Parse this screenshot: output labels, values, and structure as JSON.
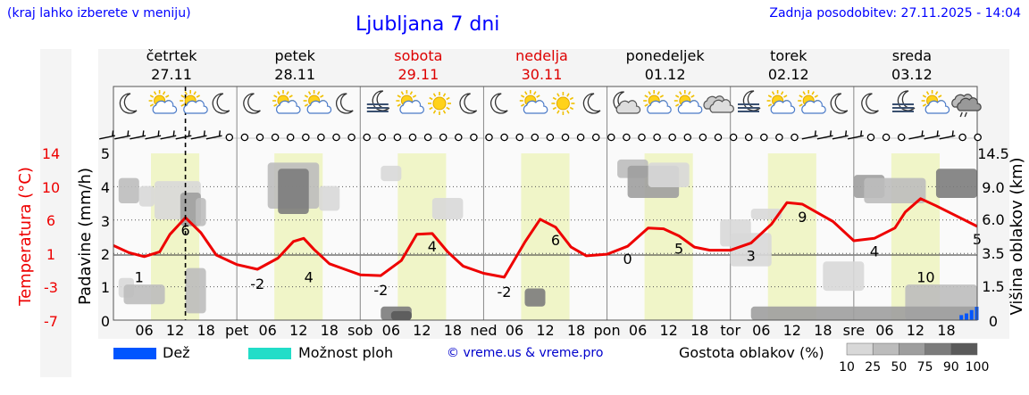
{
  "header": {
    "subtitle_left": "(kraj lahko izberete v meniju)",
    "title": "Ljubljana 7 dni",
    "updated": "Zadnja posodobitev: 27.11.2025 - 14:04"
  },
  "days": [
    {
      "name": "četrtek",
      "date": "27.11",
      "weekend": false
    },
    {
      "name": "petek",
      "date": "28.11",
      "weekend": false
    },
    {
      "name": "sobota",
      "date": "29.11",
      "weekend": true
    },
    {
      "name": "nedelja",
      "date": "30.11",
      "weekend": true
    },
    {
      "name": "ponedeljek",
      "date": "01.12",
      "weekend": false
    },
    {
      "name": "torek",
      "date": "02.12",
      "weekend": false
    },
    {
      "name": "sreda",
      "date": "03.12",
      "weekend": false
    }
  ],
  "x_labels": [
    "06",
    "12",
    "18",
    "pet",
    "06",
    "12",
    "18",
    "sob",
    "06",
    "12",
    "18",
    "ned",
    "06",
    "12",
    "18",
    "pon",
    "06",
    "12",
    "18",
    "tor",
    "06",
    "12",
    "18",
    "sre",
    "06",
    "12",
    "18"
  ],
  "weather_icons": [
    "moon",
    "sun-cloud",
    "sun-cloud",
    "moon",
    "moon",
    "sun-cloud",
    "sun-cloud",
    "moon",
    "fog",
    "sun-cloud",
    "sun",
    "moon",
    "moon",
    "sun-cloud",
    "sun",
    "moon",
    "moon-cloud",
    "sun-cloud",
    "sun-cloud",
    "cloud",
    "fog",
    "sun-cloud",
    "sun-cloud",
    "moon",
    "moon",
    "fog",
    "sun-cloud",
    "rain-cloud"
  ],
  "wind_icons": [
    "barb",
    "barb",
    "barb",
    "barb",
    "barb",
    "barb",
    "barb",
    "barb",
    "calm",
    "calm",
    "calm",
    "calm",
    "calm",
    "calm",
    "calm",
    "calm",
    "calm",
    "calm",
    "calm",
    "calm",
    "calm",
    "calm",
    "calm",
    "calm",
    "calm",
    "calm",
    "calm",
    "calm",
    "calm",
    "calm",
    "calm",
    "calm",
    "calm",
    "calm",
    "calm",
    "calm",
    "calm",
    "calm",
    "calm",
    "calm",
    "calm",
    "calm",
    "calm",
    "calm",
    "calm",
    "calm",
    "barb",
    "barb",
    "barb",
    "barb",
    "calm",
    "calm",
    "calm",
    "barb",
    "barb",
    "barb",
    "calm",
    "calm"
  ],
  "legend": {
    "rain_label": "Dež",
    "rain_color": "#0055ff",
    "showers_label": "Možnost ploh",
    "showers_color": "#22ddc8",
    "credit": "© vreme.us & vreme.pro",
    "cloud_label": "Gostota oblakov (%)",
    "cloud_levels": [
      "10",
      "25",
      "50",
      "75",
      "90",
      "100"
    ],
    "cloud_colors": [
      "#d8d8d8",
      "#bcbcbc",
      "#9e9e9e",
      "#7c7c7c",
      "#5a5a5a"
    ]
  },
  "colors": {
    "temperature": "#ee0000",
    "weekend": "#dd0000",
    "daylight": "#f0f5c8"
  },
  "chart_data": {
    "type": "line",
    "title": "Ljubljana 7 dni",
    "x_unit": "hours from 27.11 00:00",
    "now_marker_hours": 14,
    "ylabel_left_outer": "Temperatura (°C)",
    "ylabel_left_inner": "Padavine (mm/h)",
    "ylabel_right": "Višina oblakov (km)",
    "temperature_ticks": [
      "14",
      "10",
      "6",
      "1",
      "-3",
      "-7"
    ],
    "precip_ticks": [
      "5",
      "4",
      "3",
      "2",
      "1",
      "0"
    ],
    "cloud_height_ticks": [
      "14.5",
      "9.0",
      "6.0",
      "3.5",
      "1.5",
      "0"
    ],
    "daylight_hours": [
      [
        7.3,
        16.7
      ],
      [
        31.3,
        40.7
      ],
      [
        55.3,
        64.7
      ],
      [
        79.3,
        88.7
      ],
      [
        103.3,
        112.7
      ],
      [
        127.3,
        136.7
      ],
      [
        151.3,
        160.7
      ]
    ],
    "series": [
      {
        "kind": "temperature",
        "x": [
          0,
          3,
          6,
          9,
          11,
          14,
          17,
          20,
          24,
          28,
          32,
          35,
          37,
          39,
          42,
          45,
          48,
          52,
          56,
          59,
          62,
          65,
          68,
          72,
          76,
          80,
          83,
          86,
          89,
          92,
          96,
          100,
          104,
          107,
          110,
          113,
          116,
          120,
          124,
          128,
          131,
          134,
          137,
          140,
          144,
          148,
          152,
          154,
          157,
          160,
          164,
          168
        ],
        "values": [
          2.4,
          1.5,
          1.0,
          1.6,
          3.8,
          5.9,
          4.0,
          1.2,
          0,
          -0.6,
          0.8,
          2.9,
          3.3,
          1.9,
          0.1,
          -0.6,
          -1.3,
          -1.4,
          0.5,
          3.8,
          3.9,
          1.6,
          -0.2,
          -1.1,
          -1.6,
          2.8,
          5.7,
          4.7,
          2.2,
          1.1,
          1.3,
          2.3,
          4.6,
          4.5,
          3.6,
          2.2,
          1.8,
          1.8,
          2.7,
          5.1,
          7.8,
          7.6,
          6.5,
          5.4,
          3.0,
          3.3,
          4.6,
          6.6,
          8.3,
          7.4,
          6.1,
          4.8
        ]
      }
    ],
    "labels": [
      {
        "x": 5,
        "text": "1"
      },
      {
        "x": 14,
        "text": "6"
      },
      {
        "x": 28,
        "text": "-2"
      },
      {
        "x": 38,
        "text": "4"
      },
      {
        "x": 52,
        "text": "-2"
      },
      {
        "x": 62,
        "text": "4"
      },
      {
        "x": 76,
        "text": "-2"
      },
      {
        "x": 86,
        "text": "6"
      },
      {
        "x": 100,
        "text": "0"
      },
      {
        "x": 110,
        "text": "5"
      },
      {
        "x": 124,
        "text": "3"
      },
      {
        "x": 134,
        "text": "9"
      },
      {
        "x": 148,
        "text": "4"
      },
      {
        "x": 158,
        "text": "10"
      },
      {
        "x": 168,
        "text": "5"
      }
    ],
    "cloud_patches": [
      {
        "x": [
          1,
          5
        ],
        "km": [
          7.5,
          10.5
        ],
        "d": 2
      },
      {
        "x": [
          5,
          8
        ],
        "km": [
          7.2,
          9.2
        ],
        "d": 1
      },
      {
        "x": [
          8,
          17
        ],
        "km": [
          6,
          10
        ],
        "d": 1
      },
      {
        "x": [
          13,
          17
        ],
        "km": [
          5.5,
          8.5
        ],
        "d": 3
      },
      {
        "x": [
          16,
          18
        ],
        "km": [
          5.5,
          8
        ],
        "d": 2
      },
      {
        "x": [
          1,
          4
        ],
        "km": [
          1,
          2
        ],
        "d": 1
      },
      {
        "x": [
          2,
          10
        ],
        "km": [
          0.7,
          1.6
        ],
        "d": 2
      },
      {
        "x": [
          14,
          18
        ],
        "km": [
          0.3,
          2.6
        ],
        "d": 2
      },
      {
        "x": [
          30,
          40
        ],
        "km": [
          7,
          13
        ],
        "d": 2
      },
      {
        "x": [
          32,
          38
        ],
        "km": [
          6.5,
          12
        ],
        "d": 4
      },
      {
        "x": [
          40,
          44
        ],
        "km": [
          6.8,
          9.2
        ],
        "d": 1
      },
      {
        "x": [
          52,
          56
        ],
        "km": [
          10,
          12.5
        ],
        "d": 1
      },
      {
        "x": [
          62,
          68
        ],
        "km": [
          6,
          8
        ],
        "d": 1
      },
      {
        "x": [
          52,
          58
        ],
        "km": [
          0,
          0.6
        ],
        "d": 4
      },
      {
        "x": [
          54,
          58
        ],
        "km": [
          0,
          0.4
        ],
        "d": 5
      },
      {
        "x": [
          80,
          84
        ],
        "km": [
          0.6,
          1.4
        ],
        "d": 4
      },
      {
        "x": [
          98,
          104
        ],
        "km": [
          10.5,
          13.5
        ],
        "d": 2
      },
      {
        "x": [
          100,
          110
        ],
        "km": [
          8,
          12.5
        ],
        "d": 3
      },
      {
        "x": [
          104,
          112
        ],
        "km": [
          9,
          13
        ],
        "d": 1
      },
      {
        "x": [
          118,
          124
        ],
        "km": [
          4,
          6
        ],
        "d": 1
      },
      {
        "x": [
          120,
          128
        ],
        "km": [
          2.7,
          5
        ],
        "d": 1
      },
      {
        "x": [
          124,
          130
        ],
        "km": [
          6,
          7
        ],
        "d": 1
      },
      {
        "x": [
          138,
          146
        ],
        "km": [
          1.3,
          3
        ],
        "d": 1
      },
      {
        "x": [
          144,
          150
        ],
        "km": [
          8,
          11
        ],
        "d": 3
      },
      {
        "x": [
          146,
          158
        ],
        "km": [
          7.5,
          10.5
        ],
        "d": 2
      },
      {
        "x": [
          160,
          168
        ],
        "km": [
          8,
          12
        ],
        "d": 4
      },
      {
        "x": [
          154,
          168
        ],
        "km": [
          0,
          1.6
        ],
        "d": 2
      },
      {
        "x": [
          124,
          168
        ],
        "km": [
          0,
          0.6
        ],
        "d": 3
      }
    ],
    "precipitation_bars": [
      {
        "x": 165,
        "mm": 0.15
      },
      {
        "x": 166,
        "mm": 0.2
      },
      {
        "x": 167,
        "mm": 0.3
      },
      {
        "x": 168,
        "mm": 0.4
      }
    ]
  }
}
